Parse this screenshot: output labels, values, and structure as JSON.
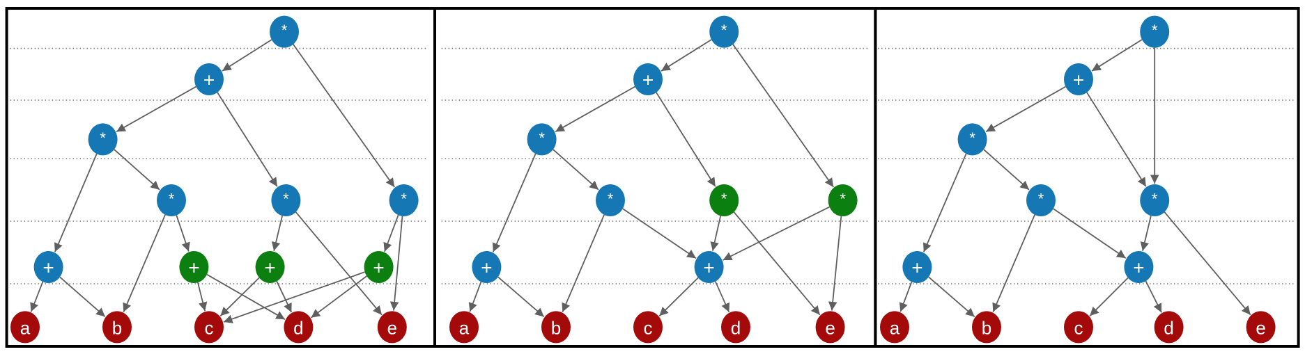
{
  "colors": {
    "operator": "#1578b4",
    "highlight": "#0b7f0f",
    "leaf": "#a50a0a",
    "edge": "#5f5f5f",
    "border": "#000000",
    "gridline": "#777777"
  },
  "panels": [
    {
      "nodes": [
        {
          "id": "r",
          "label": "*",
          "kind": "operator"
        },
        {
          "id": "p",
          "label": "+",
          "kind": "operator"
        },
        {
          "id": "m1",
          "label": "*",
          "kind": "operator"
        },
        {
          "id": "m2",
          "label": "*",
          "kind": "operator"
        },
        {
          "id": "m3",
          "label": "*",
          "kind": "operator"
        },
        {
          "id": "m4",
          "label": "*",
          "kind": "operator"
        },
        {
          "id": "pa",
          "label": "+",
          "kind": "operator"
        },
        {
          "id": "g1",
          "label": "+",
          "kind": "highlight"
        },
        {
          "id": "g2",
          "label": "+",
          "kind": "highlight"
        },
        {
          "id": "g3",
          "label": "+",
          "kind": "highlight"
        },
        {
          "id": "a",
          "label": "a",
          "kind": "leaf"
        },
        {
          "id": "b",
          "label": "b",
          "kind": "leaf"
        },
        {
          "id": "c",
          "label": "c",
          "kind": "leaf"
        },
        {
          "id": "d",
          "label": "d",
          "kind": "leaf"
        },
        {
          "id": "e",
          "label": "e",
          "kind": "leaf"
        }
      ],
      "edges": [
        [
          "r",
          "p"
        ],
        [
          "r",
          "m4"
        ],
        [
          "p",
          "m1"
        ],
        [
          "p",
          "m3"
        ],
        [
          "m1",
          "pa"
        ],
        [
          "m1",
          "m2"
        ],
        [
          "m2",
          "b"
        ],
        [
          "m2",
          "g1"
        ],
        [
          "m3",
          "g2"
        ],
        [
          "m3",
          "e"
        ],
        [
          "m4",
          "g3"
        ],
        [
          "m4",
          "e"
        ],
        [
          "pa",
          "a"
        ],
        [
          "pa",
          "b"
        ],
        [
          "g1",
          "c"
        ],
        [
          "g1",
          "d"
        ],
        [
          "g2",
          "c"
        ],
        [
          "g2",
          "d"
        ],
        [
          "g3",
          "c"
        ],
        [
          "g3",
          "d"
        ]
      ]
    },
    {
      "nodes": [
        {
          "id": "r",
          "label": "*",
          "kind": "operator"
        },
        {
          "id": "p",
          "label": "+",
          "kind": "operator"
        },
        {
          "id": "m1",
          "label": "*",
          "kind": "operator"
        },
        {
          "id": "m2",
          "label": "*",
          "kind": "operator"
        },
        {
          "id": "m3",
          "label": "*",
          "kind": "highlight"
        },
        {
          "id": "m4",
          "label": "*",
          "kind": "highlight"
        },
        {
          "id": "pa",
          "label": "+",
          "kind": "operator"
        },
        {
          "id": "p2",
          "label": "+",
          "kind": "operator"
        },
        {
          "id": "a",
          "label": "a",
          "kind": "leaf"
        },
        {
          "id": "b",
          "label": "b",
          "kind": "leaf"
        },
        {
          "id": "c",
          "label": "c",
          "kind": "leaf"
        },
        {
          "id": "d",
          "label": "d",
          "kind": "leaf"
        },
        {
          "id": "e",
          "label": "e",
          "kind": "leaf"
        }
      ],
      "edges": [
        [
          "r",
          "p"
        ],
        [
          "r",
          "m4"
        ],
        [
          "p",
          "m1"
        ],
        [
          "p",
          "m3"
        ],
        [
          "m1",
          "pa"
        ],
        [
          "m1",
          "m2"
        ],
        [
          "m2",
          "b"
        ],
        [
          "m2",
          "p2"
        ],
        [
          "m3",
          "p2"
        ],
        [
          "m3",
          "e"
        ],
        [
          "m4",
          "p2"
        ],
        [
          "m4",
          "e"
        ],
        [
          "pa",
          "a"
        ],
        [
          "pa",
          "b"
        ],
        [
          "p2",
          "c"
        ],
        [
          "p2",
          "d"
        ]
      ]
    },
    {
      "nodes": [
        {
          "id": "r",
          "label": "*",
          "kind": "operator"
        },
        {
          "id": "p",
          "label": "+",
          "kind": "operator"
        },
        {
          "id": "m1",
          "label": "*",
          "kind": "operator"
        },
        {
          "id": "m2",
          "label": "*",
          "kind": "operator"
        },
        {
          "id": "m3",
          "label": "*",
          "kind": "operator"
        },
        {
          "id": "pa",
          "label": "+",
          "kind": "operator"
        },
        {
          "id": "p2",
          "label": "+",
          "kind": "operator"
        },
        {
          "id": "a",
          "label": "a",
          "kind": "leaf"
        },
        {
          "id": "b",
          "label": "b",
          "kind": "leaf"
        },
        {
          "id": "c",
          "label": "c",
          "kind": "leaf"
        },
        {
          "id": "d",
          "label": "d",
          "kind": "leaf"
        },
        {
          "id": "e",
          "label": "e",
          "kind": "leaf"
        }
      ],
      "edges": [
        [
          "r",
          "p"
        ],
        [
          "r",
          "m3"
        ],
        [
          "p",
          "m1"
        ],
        [
          "p",
          "m3"
        ],
        [
          "m1",
          "pa"
        ],
        [
          "m1",
          "m2"
        ],
        [
          "m2",
          "b"
        ],
        [
          "m2",
          "p2"
        ],
        [
          "m3",
          "p2"
        ],
        [
          "m3",
          "e"
        ],
        [
          "pa",
          "a"
        ],
        [
          "pa",
          "b"
        ],
        [
          "p2",
          "c"
        ],
        [
          "p2",
          "d"
        ]
      ]
    }
  ]
}
